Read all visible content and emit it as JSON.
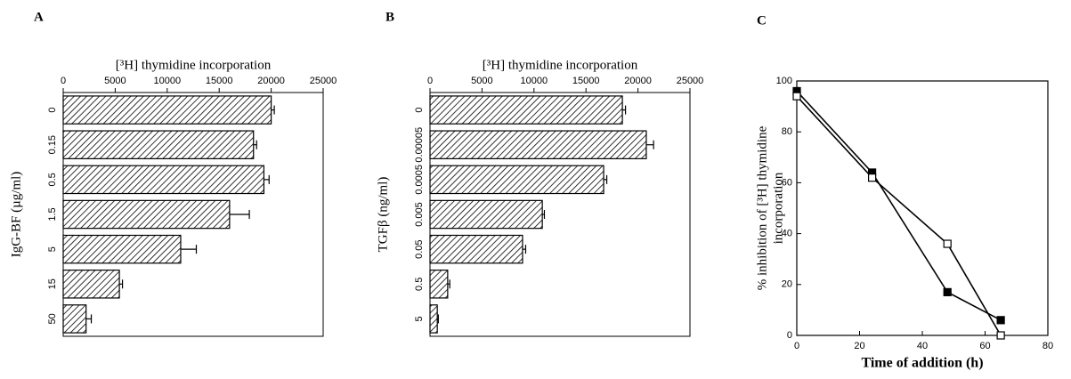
{
  "chart_data": [
    {
      "type": "bar",
      "orientation": "horizontal",
      "panel": "A",
      "title": "[³H] thymidine incorporation",
      "ylabel": "IgG-BF (µg/ml)",
      "categories": [
        "0",
        "0.15",
        "0.5",
        "1.5",
        "5",
        "15",
        "50"
      ],
      "values": [
        20000,
        18300,
        19300,
        16000,
        11300,
        5400,
        2200
      ],
      "errors": [
        300,
        300,
        500,
        1900,
        1500,
        300,
        500
      ],
      "xlim": [
        0,
        25000
      ],
      "xticks": [
        0,
        5000,
        10000,
        15000,
        20000,
        25000
      ],
      "color": "#000000"
    },
    {
      "type": "bar",
      "orientation": "horizontal",
      "panel": "B",
      "title": "[³H] thymidine incorporation",
      "ylabel": "TGFβ (ng/ml)",
      "categories": [
        "0",
        "0.00005",
        "0.0005",
        "0.005",
        "0.05",
        "0.5",
        "5"
      ],
      "values": [
        18500,
        20800,
        16700,
        10800,
        8900,
        1700,
        700
      ],
      "errors": [
        300,
        700,
        300,
        200,
        300,
        200,
        100
      ],
      "xlim": [
        0,
        25000
      ],
      "xticks": [
        0,
        5000,
        10000,
        15000,
        20000,
        25000
      ],
      "color": "#000000"
    },
    {
      "type": "line",
      "panel": "C",
      "xlabel": "Time of addition (h)",
      "ylabel": [
        "% inhibition of [³H] thymidine",
        "incorporation"
      ],
      "x": [
        0,
        24,
        48,
        65
      ],
      "series": [
        {
          "color": "#000000",
          "marker_fill": "#000000",
          "values": [
            96,
            64,
            17,
            6
          ]
        },
        {
          "color": "#000000",
          "marker_fill": "#ffffff",
          "values": [
            94,
            62,
            36,
            0
          ]
        }
      ],
      "xlim": [
        0,
        80
      ],
      "xticks": [
        0,
        20,
        40,
        60,
        80
      ],
      "ylim": [
        0,
        100
      ],
      "yticks": [
        0,
        20,
        40,
        60,
        80,
        100
      ]
    }
  ]
}
